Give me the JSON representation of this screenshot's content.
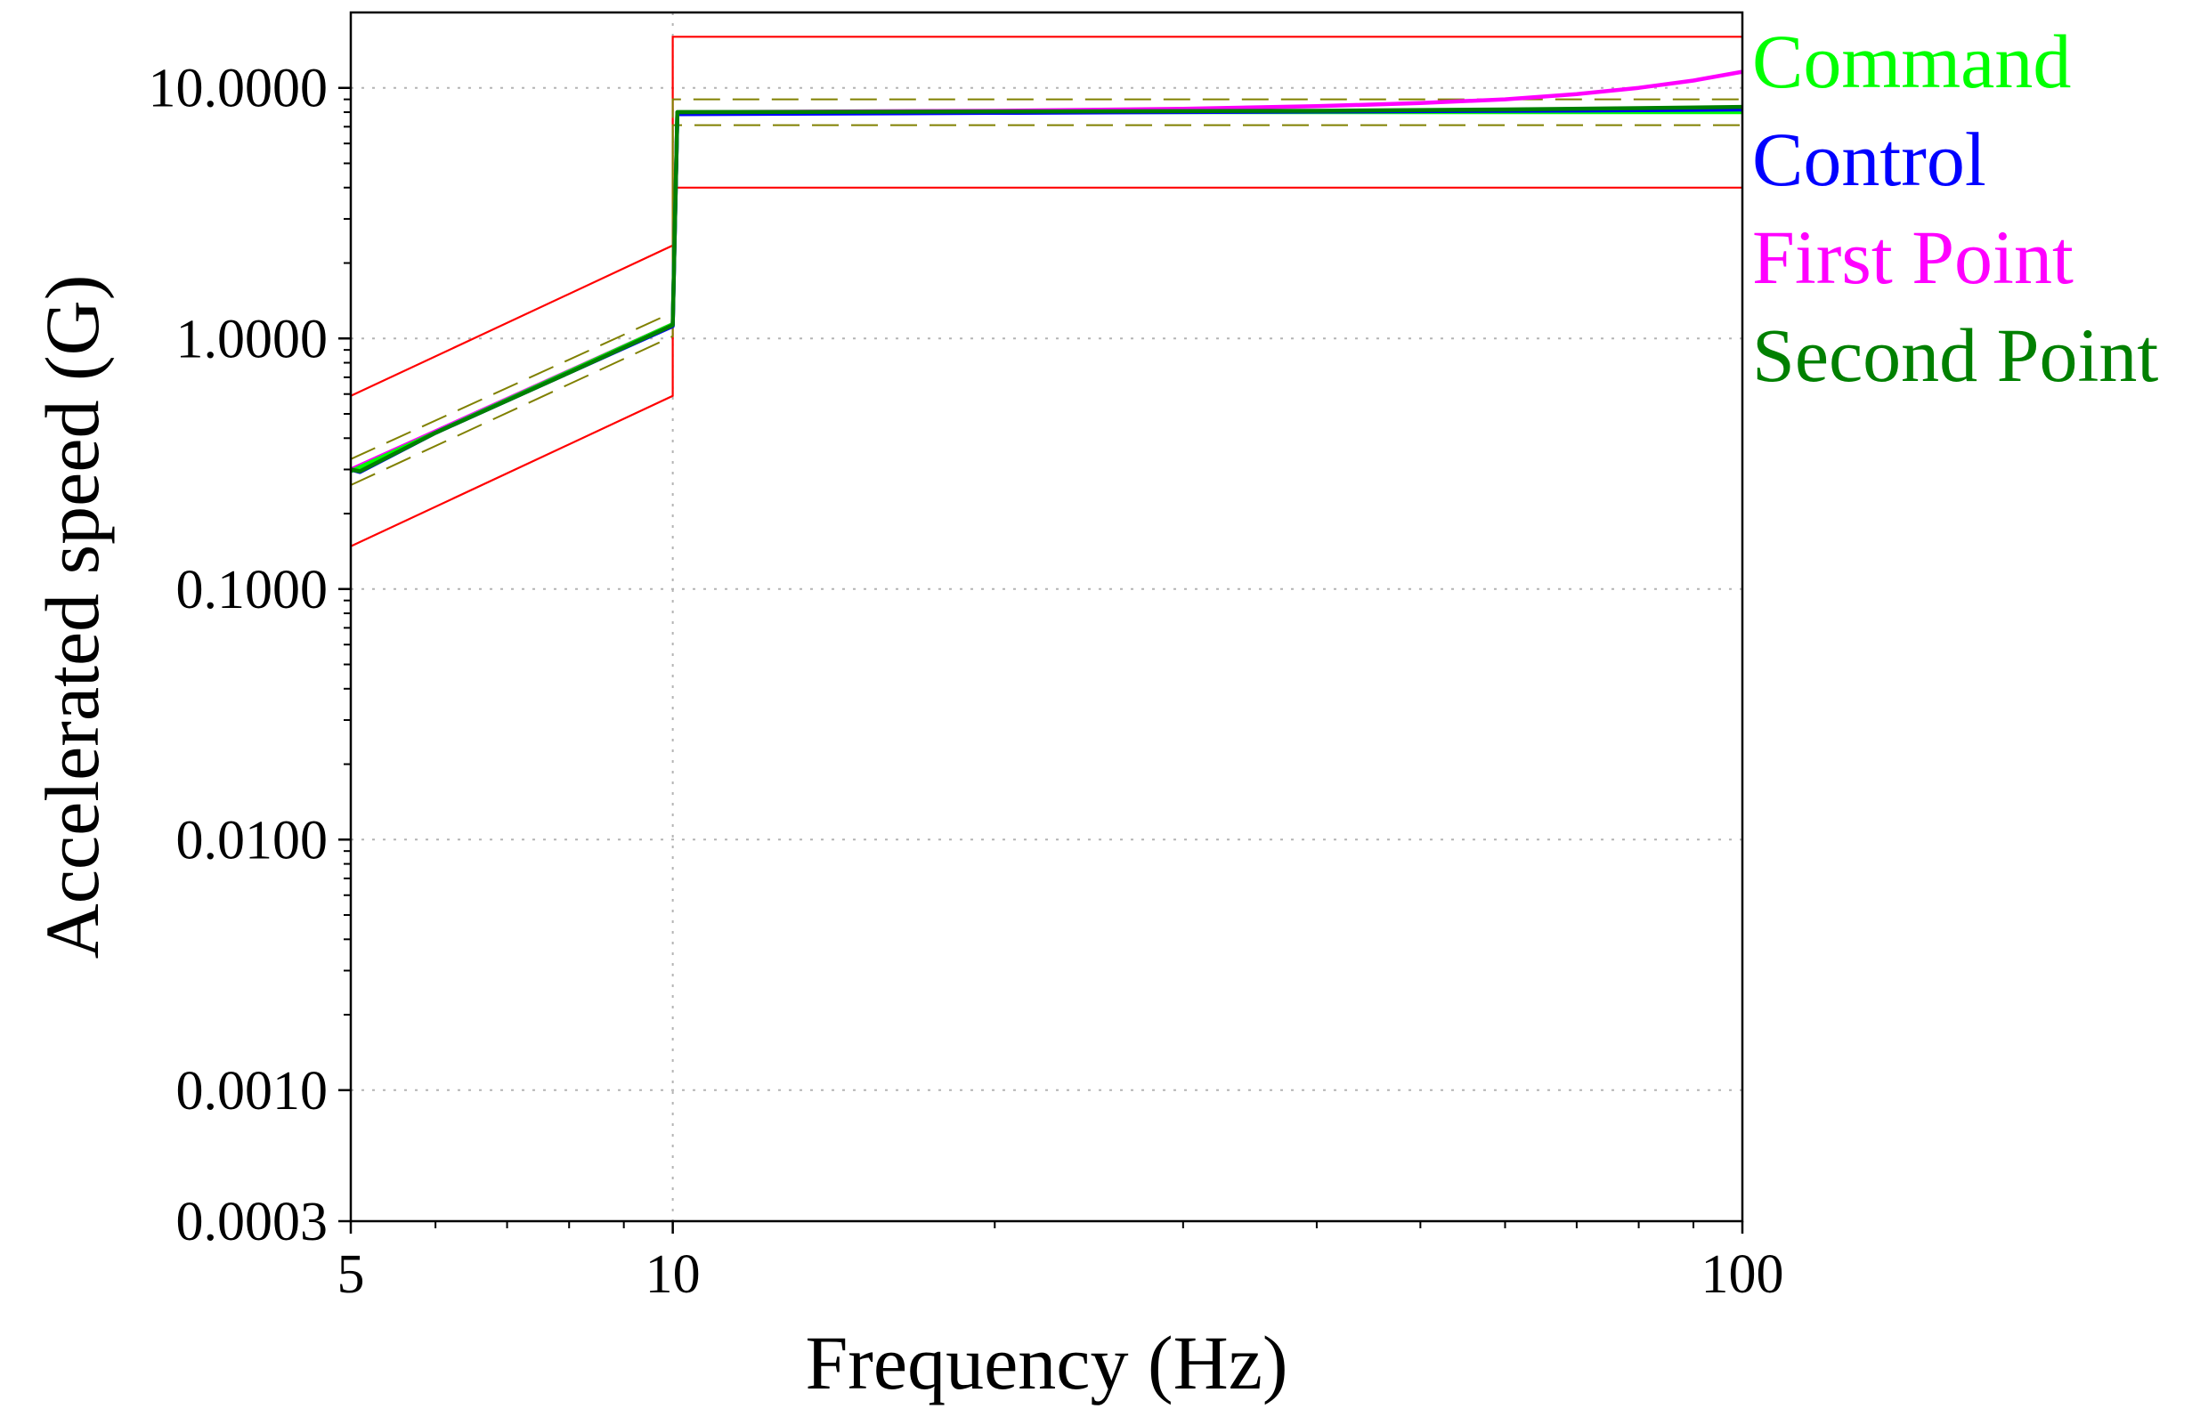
{
  "chart_data": {
    "type": "line",
    "xlabel": "Frequency (Hz)",
    "ylabel": "Accelerated speed (G)",
    "xscale": "log",
    "yscale": "log",
    "xlim": [
      5,
      100
    ],
    "ylim": [
      0.0003,
      20
    ],
    "grid": "dotted, at y decades and x = 10",
    "legend_position": "right, outside plot",
    "x_ticks": [
      {
        "value": 5,
        "label": "5"
      },
      {
        "value": 10,
        "label": "10"
      },
      {
        "value": 100,
        "label": "100"
      }
    ],
    "y_ticks": [
      {
        "value": 10,
        "label": "10.0000"
      },
      {
        "value": 1,
        "label": "1.0000"
      },
      {
        "value": 0.1,
        "label": "0.1000"
      },
      {
        "value": 0.01,
        "label": "0.0100"
      },
      {
        "value": 0.001,
        "label": "0.0010"
      },
      {
        "value": 0.0003,
        "label": "0.0003"
      }
    ],
    "reference_lines": [
      {
        "style": "solid",
        "color": "#ff0000",
        "x": [
          5,
          10,
          10,
          100
        ],
        "y": [
          0.59,
          2.35,
          16.0,
          16.0
        ]
      },
      {
        "style": "solid",
        "color": "#ff0000",
        "x": [
          5,
          10,
          10,
          100
        ],
        "y": [
          0.148,
          0.59,
          4.0,
          4.0
        ]
      },
      {
        "style": "dashed",
        "color": "#808000",
        "x": [
          5,
          10,
          10,
          100
        ],
        "y": [
          0.33,
          1.27,
          9.0,
          9.0
        ]
      },
      {
        "style": "dashed",
        "color": "#808000",
        "x": [
          5,
          10,
          10,
          100
        ],
        "y": [
          0.26,
          1.02,
          7.1,
          7.1
        ]
      }
    ],
    "series": [
      {
        "name": "Command",
        "color": "#00ff00",
        "x": [
          5,
          10,
          10.1,
          100
        ],
        "y": [
          0.295,
          1.14,
          8.0,
          8.0
        ]
      },
      {
        "name": "Control",
        "color": "#0000ff",
        "x": [
          5,
          5.1,
          6,
          8,
          10,
          10.1,
          20,
          40,
          60,
          80,
          100
        ],
        "y": [
          0.3,
          0.293,
          0.42,
          0.73,
          1.12,
          7.85,
          7.95,
          8.05,
          8.1,
          8.15,
          8.2
        ]
      },
      {
        "name": "First Point",
        "color": "#ff00ff",
        "x": [
          5,
          10,
          10.1,
          20,
          30,
          40,
          50,
          60,
          70,
          80,
          90,
          100
        ],
        "y": [
          0.3,
          1.14,
          8.0,
          8.1,
          8.25,
          8.45,
          8.7,
          9.0,
          9.45,
          10.0,
          10.7,
          11.6
        ]
      },
      {
        "name": "Second Point",
        "color": "#008000",
        "x": [
          5,
          5.1,
          6,
          8,
          10,
          10.1,
          20,
          40,
          60,
          80,
          100
        ],
        "y": [
          0.3,
          0.295,
          0.42,
          0.73,
          1.13,
          8.0,
          8.05,
          8.1,
          8.2,
          8.3,
          8.4
        ]
      }
    ]
  }
}
